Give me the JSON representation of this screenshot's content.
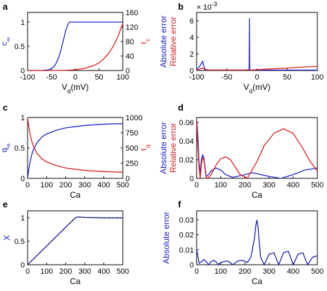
{
  "chart_data": [
    {
      "panel": "a",
      "type": "line",
      "xlabel": "V_d(mV)",
      "ylabel_left": "c_∞",
      "ylabel_right": "τ_c",
      "xlim": [
        -100,
        100
      ],
      "ylim_left": [
        0,
        1.2
      ],
      "ylim_right": [
        0,
        160
      ],
      "xticks": [
        "-100",
        "-50",
        "0",
        "50",
        "100"
      ],
      "yticks_left": [
        "0",
        "0.5",
        "1"
      ],
      "yticks_right": [
        "0",
        "40",
        "80",
        "120",
        "160"
      ],
      "colors": {
        "left": "#1f24c8",
        "right": "#d81f1f"
      },
      "series": [
        {
          "axis": "left",
          "x": [
            -100,
            -70,
            -60,
            -55,
            -50,
            -45,
            -40,
            -35,
            -30,
            -25,
            -20,
            -15,
            -12,
            0,
            50,
            100
          ],
          "y": [
            0,
            0.002,
            0.01,
            0.02,
            0.04,
            0.08,
            0.15,
            0.26,
            0.42,
            0.62,
            0.82,
            0.96,
            1,
            1,
            1,
            1
          ]
        },
        {
          "axis": "right",
          "x": [
            -100,
            -50,
            -20,
            0,
            20,
            40,
            50,
            60,
            70,
            80,
            90,
            100
          ],
          "y": [
            0,
            0,
            0.5,
            2,
            6,
            14,
            21,
            32,
            47,
            67,
            94,
            130
          ]
        }
      ]
    },
    {
      "panel": "b",
      "type": "line",
      "xlabel": "V_d(mV)",
      "ylabel_left": "Absolute error",
      "ylabel_right": "Relative error",
      "exponent_label": "× 10",
      "exponent_power": "-3",
      "xlim": [
        -100,
        100
      ],
      "ylim": [
        0,
        7
      ],
      "xticks": [
        "-100",
        "-50",
        "0",
        "50",
        "100"
      ],
      "yticks": [
        "0",
        "2",
        "4",
        "6"
      ],
      "colors": {
        "abs": "#1f24c8",
        "rel": "#d81f1f"
      },
      "series": [
        {
          "name_ref": "abs",
          "x": [
            -100,
            -95,
            -90,
            -87,
            -85,
            -80,
            -50,
            -20,
            -13,
            -12.5,
            -12,
            -11.5,
            -11,
            0,
            50,
            100
          ],
          "y": [
            0.1,
            0.5,
            1.1,
            0.3,
            0.1,
            0.05,
            0.05,
            0.05,
            0.1,
            6.3,
            0.2,
            0.05,
            0.05,
            0.05,
            0.05,
            0.05
          ]
        },
        {
          "name_ref": "rel",
          "x": [
            -100,
            -95,
            -90,
            -86,
            -80,
            -60,
            -30,
            -15,
            -12,
            -10,
            0,
            50,
            100
          ],
          "y": [
            0.02,
            0.15,
            0.3,
            0.1,
            0.05,
            0.05,
            0.05,
            0.05,
            0.1,
            0.05,
            0.1,
            0.3,
            0.5
          ]
        }
      ]
    },
    {
      "panel": "c",
      "type": "line",
      "xlabel": "Ca",
      "ylabel_left": "q_∞",
      "ylabel_right": "τ_q",
      "xlim": [
        0,
        500
      ],
      "ylim_left": [
        0,
        1
      ],
      "ylim_right": [
        0,
        1000
      ],
      "xticks": [
        "0",
        "100",
        "200",
        "300",
        "400",
        "500"
      ],
      "yticks_left": [
        "0",
        "0.5",
        "1"
      ],
      "yticks_right": [
        "0",
        "250",
        "500",
        "750",
        "1000"
      ],
      "colors": {
        "left": "#1f24c8",
        "right": "#d81f1f"
      },
      "series": [
        {
          "axis": "left",
          "x": [
            0,
            5,
            10,
            20,
            30,
            50,
            75,
            100,
            150,
            200,
            250,
            300,
            400,
            500
          ],
          "y": [
            0,
            0.12,
            0.22,
            0.37,
            0.47,
            0.59,
            0.68,
            0.73,
            0.79,
            0.83,
            0.85,
            0.87,
            0.89,
            0.9
          ]
        },
        {
          "axis": "right",
          "x": [
            0,
            5,
            10,
            20,
            30,
            50,
            75,
            100,
            150,
            200,
            250,
            300,
            400,
            500
          ],
          "y": [
            1000,
            880,
            780,
            630,
            530,
            410,
            320,
            270,
            210,
            170,
            150,
            130,
            110,
            100
          ]
        }
      ]
    },
    {
      "panel": "d",
      "type": "line",
      "xlabel": "Ca",
      "ylabel_left": "Absolute error",
      "ylabel_right": "Relative error",
      "xlim": [
        0,
        500
      ],
      "ylim": [
        0,
        0.065
      ],
      "xticks": [
        "0",
        "100",
        "200",
        "300",
        "400",
        "500"
      ],
      "yticks": [
        "0",
        "0.02",
        "0.04",
        "0.06"
      ],
      "colors": {
        "abs": "#1f24c8",
        "rel": "#d81f1f"
      },
      "series": [
        {
          "name_ref": "abs",
          "x": [
            0,
            2,
            5,
            10,
            15,
            20,
            25,
            30,
            35,
            40,
            50,
            60,
            80,
            100,
            120,
            150,
            200,
            230,
            250,
            300,
            350,
            400,
            450,
            500
          ],
          "y": [
            0.06,
            0.058,
            0.045,
            0.018,
            0.005,
            0.02,
            0.025,
            0.022,
            0.012,
            0.002,
            0.004,
            0.008,
            0.011,
            0.009,
            0.004,
            0.001,
            0.004,
            0.006,
            0.005,
            0.002,
            0.0,
            0.004,
            0.009,
            0.011
          ]
        },
        {
          "name_ref": "rel",
          "x": [
            0,
            2,
            5,
            10,
            15,
            20,
            25,
            30,
            35,
            40,
            50,
            60,
            80,
            100,
            120,
            140,
            160,
            180,
            210,
            250,
            280,
            320,
            360,
            400,
            440,
            470,
            500
          ],
          "y": [
            0.06,
            0.05,
            0.035,
            0.012,
            0.0,
            0.015,
            0.022,
            0.02,
            0.01,
            0.0,
            0.001,
            0.004,
            0.014,
            0.021,
            0.023,
            0.02,
            0.012,
            0.004,
            0.0,
            0.018,
            0.035,
            0.048,
            0.053,
            0.048,
            0.032,
            0.018,
            0.008
          ]
        }
      ]
    },
    {
      "panel": "e",
      "type": "line",
      "xlabel": "Ca",
      "ylabel": "X",
      "xlim": [
        0,
        500
      ],
      "ylim": [
        0,
        1.15
      ],
      "xticks": [
        "0",
        "100",
        "200",
        "300",
        "400",
        "500"
      ],
      "yticks": [
        "0",
        "0.5",
        "1"
      ],
      "colors": {
        "line": "#1f24c8",
        "dash": "#000000"
      },
      "series": [
        {
          "x": [
            0,
            50,
            100,
            150,
            200,
            250,
            265,
            280,
            300,
            350,
            400,
            450,
            500
          ],
          "y": [
            0,
            0.2,
            0.4,
            0.6,
            0.8,
            1.0,
            1.02,
            1.015,
            1.01,
            1.005,
            1.0,
            1.0,
            1.0
          ]
        }
      ]
    },
    {
      "panel": "f",
      "type": "line",
      "xlabel": "Ca",
      "ylabel": "Absolute error",
      "xlim": [
        0,
        500
      ],
      "ylim": [
        0,
        0.036
      ],
      "xticks": [
        "0",
        "100",
        "200",
        "300",
        "400",
        "500"
      ],
      "yticks": [
        "0",
        "0.01",
        "0.02",
        "0.03"
      ],
      "colors": {
        "line": "#1f24c8"
      },
      "series": [
        {
          "x": [
            0,
            5,
            10,
            20,
            30,
            40,
            50,
            60,
            70,
            80,
            90,
            100,
            110,
            130,
            150,
            170,
            190,
            210,
            225,
            240,
            245,
            250,
            255,
            260,
            265,
            280,
            300,
            320,
            340,
            360,
            380,
            400,
            420,
            440,
            460,
            480,
            500
          ],
          "y": [
            0.01,
            0.006,
            0.001,
            0.002,
            0.0035,
            0.002,
            0.0,
            0.002,
            0.003,
            0.002,
            0.0,
            0.0015,
            0.002,
            0.0025,
            0.0,
            0.0025,
            0.003,
            0.0015,
            0.005,
            0.018,
            0.026,
            0.03,
            0.024,
            0.014,
            0.005,
            0.0,
            0.007,
            0.008,
            0.0,
            0.008,
            0.009,
            0.0,
            0.007,
            0.008,
            0.0,
            0.005,
            0.006
          ]
        }
      ]
    }
  ]
}
